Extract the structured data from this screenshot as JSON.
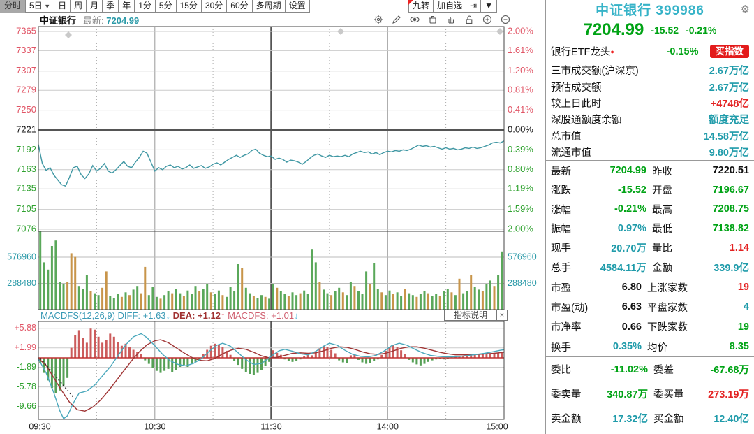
{
  "toolbar": {
    "tabs": [
      {
        "label": "分时",
        "selected": true
      },
      {
        "label": "5日",
        "dropdown": true
      },
      {
        "label": "日"
      },
      {
        "label": "周"
      },
      {
        "label": "月"
      },
      {
        "label": "季"
      },
      {
        "label": "年"
      },
      {
        "label": "1分"
      },
      {
        "label": "5分"
      },
      {
        "label": "15分"
      },
      {
        "label": "30分"
      },
      {
        "label": "60分"
      },
      {
        "label": "多周期"
      },
      {
        "label": "设置"
      }
    ],
    "right": [
      {
        "label": "九转",
        "badge": true
      },
      {
        "label": "加自选"
      },
      {
        "label": "⇥",
        "icon": "next-page-icon"
      },
      {
        "label": "▼",
        "icon": "dropdown-icon"
      }
    ]
  },
  "chart_header": {
    "name": "中证银行",
    "latest_label": "最新:",
    "latest_value": "7204.99",
    "tools": [
      "gear-icon",
      "pencil-icon",
      "eye-icon",
      "trash-icon",
      "hand-icon",
      "unlock-icon",
      "zoom-in-icon",
      "zoom-out-icon"
    ]
  },
  "macd_header": {
    "name": "MACDFS(12,26,9)",
    "diff_label": " DIFF: ",
    "diff_value": "+1.63",
    "diff_arrow": "↓",
    "dea_label": " DEA: ",
    "dea_value": "+1.12",
    "dea_arrow": "↑",
    "macd_label": " MACDFS: ",
    "macd_value": "+1.01",
    "macd_arrow": "↓"
  },
  "indicator_panel": {
    "button": "指标说明",
    "close": "×"
  },
  "chart_data": {
    "type": "line",
    "title": "中证银行 分时图 (intraday)",
    "prev_close": 7220.51,
    "latest": 7204.99,
    "x_ticks": [
      "09:30",
      "10:30",
      "11:30",
      "14:00",
      "15:00"
    ],
    "price_ticks": [
      7365,
      7337,
      7307,
      7279,
      7250,
      7221,
      7192,
      7163,
      7135,
      7105,
      7076
    ],
    "pct_ticks": [
      "2.00%",
      "1.61%",
      "1.20%",
      "0.81%",
      "0.41%",
      "0.00%",
      "0.39%",
      "0.80%",
      "1.19%",
      "1.59%",
      "2.00%"
    ],
    "vol_ticks": [
      576960,
      288480
    ],
    "macd_ticks": [
      "+5.88",
      "+1.99",
      "-1.89",
      "-5.78",
      "-9.66"
    ],
    "ylim": [
      7076,
      7365
    ],
    "grid": true,
    "price": [
      7200,
      7172,
      7162,
      7166,
      7155,
      7148,
      7141,
      7139,
      7152,
      7166,
      7168,
      7156,
      7150,
      7157,
      7169,
      7161,
      7165,
      7172,
      7161,
      7158,
      7163,
      7169,
      7175,
      7168,
      7166,
      7174,
      7181,
      7190,
      7187,
      7174,
      7161,
      7166,
      7163,
      7168,
      7170,
      7166,
      7168,
      7164,
      7166,
      7170,
      7165,
      7167,
      7169,
      7165,
      7167,
      7171,
      7173,
      7170,
      7174,
      7178,
      7181,
      7184,
      7181,
      7184,
      7186,
      7191,
      7193,
      7187,
      7184,
      7182,
      7183,
      7178,
      7180,
      7178,
      7174,
      7177,
      7176,
      7174,
      7171,
      7175,
      7180,
      7184,
      7186,
      7183,
      7181,
      7184,
      7182,
      7183,
      7182,
      7184,
      7182,
      7186,
      7188,
      7190,
      7188,
      7189,
      7186,
      7188,
      7185,
      7188,
      7190,
      7189,
      7191,
      7190,
      7192,
      7191,
      7193,
      7196,
      7199,
      7197,
      7198,
      7196,
      7197,
      7195,
      7193,
      7195,
      7193,
      7194,
      7192,
      7193,
      7195,
      7194,
      7196,
      7194,
      7195,
      7197,
      7199,
      7202,
      7203,
      7202,
      7205
    ],
    "volume_scale": 1000,
    "volume": [
      860,
      520,
      440,
      700,
      760,
      300,
      280,
      -300,
      -620,
      -580,
      260,
      230,
      380,
      -200,
      180,
      160,
      -240,
      -420,
      150,
      130,
      170,
      -140,
      190,
      -160,
      220,
      260,
      -180,
      -470,
      160,
      250,
      140,
      -120,
      160,
      200,
      -180,
      230,
      180,
      -150,
      210,
      170,
      260,
      -200,
      230,
      280,
      -190,
      170,
      210,
      -160,
      140,
      250,
      200,
      500,
      -460,
      240,
      180,
      -150,
      130,
      160,
      -140,
      120,
      280,
      -240,
      200,
      170,
      -150,
      190,
      160,
      -180,
      210,
      170,
      660,
      520,
      -300,
      220,
      180,
      -160,
      200,
      240,
      -190,
      160,
      300,
      -260,
      200,
      170,
      420,
      -280,
      510,
      230,
      -190,
      160,
      210,
      -170,
      190,
      150,
      -230,
      180,
      160,
      -140,
      170,
      200,
      -180,
      150,
      170,
      -150,
      200,
      230,
      -190,
      160,
      -340,
      180,
      200,
      -380,
      250,
      220,
      -200,
      280,
      320,
      -260,
      380,
      640
    ],
    "macd": {
      "hist": [
        -1,
        -3,
        -4.5,
        -6,
        -7,
        -6.5,
        -5.5,
        -4,
        2,
        4.5,
        5.5,
        4,
        3,
        5.8,
        5.6,
        4.2,
        3,
        3.5,
        4.8,
        4.2,
        3.2,
        2.4,
        2.8,
        2.2,
        1.6,
        1.2,
        0.8,
        -0.5,
        -1.2,
        -2,
        -2.6,
        -3,
        -2.6,
        -2.2,
        -2.8,
        -2.4,
        -1.8,
        -1.4,
        -1.8,
        -1.2,
        -0.8,
        -0.4,
        0.8,
        1.6,
        2.4,
        2.8,
        2.6,
        2.2,
        1.4,
        0.6,
        -0.6,
        -1.4,
        -2.2,
        -2.8,
        -3.2,
        -3.4,
        -3,
        -2.4,
        -1.6,
        -0.8,
        1.5,
        1.0,
        0.6,
        -0.3,
        -0.6,
        -0.8,
        -0.6,
        -0.3,
        0.4,
        0.8,
        0.5,
        1.2,
        1.9,
        2.4,
        2.2,
        1.6,
        0.9,
        -0.5,
        -0.9,
        -1.0,
        0.5,
        0.8,
        -0.4,
        -0.9,
        -1.2,
        -1.0,
        -0.6,
        -0.3,
        0.6,
        1.4,
        2.1,
        2.5,
        2.2,
        1.5,
        0.8,
        -0.4,
        -0.9,
        -1.3,
        -1.5,
        -1.2,
        -0.8,
        -0.5,
        -0.3,
        -0.2,
        -0.3,
        -0.2,
        0.2,
        0.3,
        0.2,
        0.3,
        0.4,
        0.5,
        0.6,
        0.7,
        0.8,
        0.9,
        0.9,
        1.0,
        1.0,
        1.0
      ],
      "diff": [
        [
          0,
          -0.2
        ],
        [
          4,
          -3
        ],
        [
          8,
          -7
        ],
        [
          11,
          -10.5
        ],
        [
          13,
          -12.4
        ],
        [
          15,
          -11.5
        ],
        [
          18,
          -9
        ],
        [
          21,
          -7
        ],
        [
          25,
          -6.6
        ],
        [
          29,
          -5.4
        ],
        [
          33,
          -3.6
        ],
        [
          37,
          -1.8
        ],
        [
          41,
          0.4
        ],
        [
          45,
          2.6
        ],
        [
          49,
          4.2
        ],
        [
          53,
          4.8
        ],
        [
          56,
          4.0
        ],
        [
          60,
          2.4
        ],
        [
          64,
          0.7
        ],
        [
          68,
          -0.6
        ],
        [
          72,
          -1.3
        ],
        [
          76,
          -1.6
        ],
        [
          80,
          -1.1
        ],
        [
          84,
          -0.2
        ],
        [
          88,
          1.3
        ],
        [
          92,
          2.5
        ],
        [
          95,
          2.9
        ],
        [
          99,
          2.3
        ],
        [
          103,
          1.0
        ],
        [
          107,
          -0.4
        ],
        [
          111,
          -1.3
        ],
        [
          115,
          -1.1
        ],
        [
          118,
          -0.3
        ],
        [
          121,
          0.6
        ],
        [
          124,
          1.4
        ],
        [
          127,
          1.7
        ],
        [
          131,
          1.3
        ],
        [
          135,
          0.8
        ],
        [
          139,
          0.6
        ],
        [
          143,
          1.3
        ],
        [
          147,
          2.3
        ],
        [
          150,
          2.9
        ],
        [
          154,
          2.5
        ],
        [
          158,
          1.5
        ],
        [
          162,
          0.7
        ],
        [
          166,
          0.3
        ],
        [
          170,
          0.2
        ],
        [
          174,
          0.5
        ],
        [
          178,
          1.3
        ],
        [
          182,
          2.4
        ],
        [
          186,
          2.9
        ],
        [
          190,
          2.5
        ],
        [
          194,
          1.7
        ],
        [
          198,
          1.0
        ],
        [
          202,
          0.5
        ],
        [
          206,
          0.3
        ],
        [
          210,
          0.2
        ],
        [
          214,
          0.2
        ],
        [
          218,
          0.3
        ],
        [
          222,
          0.5
        ],
        [
          226,
          0.7
        ],
        [
          230,
          0.9
        ],
        [
          234,
          1.2
        ],
        [
          238,
          1.5
        ],
        [
          240,
          1.63
        ]
      ],
      "dea": [
        [
          0,
          -0.1
        ],
        [
          4,
          -1.5
        ],
        [
          8,
          -4
        ],
        [
          12,
          -6.5
        ],
        [
          16,
          -8.8
        ],
        [
          20,
          -10.3
        ],
        [
          24,
          -10.6
        ],
        [
          28,
          -9.8
        ],
        [
          32,
          -8.4
        ],
        [
          36,
          -6.6
        ],
        [
          40,
          -4.6
        ],
        [
          44,
          -2.6
        ],
        [
          48,
          -0.6
        ],
        [
          52,
          1.2
        ],
        [
          56,
          2.6
        ],
        [
          60,
          3.4
        ],
        [
          63,
          3.6
        ],
        [
          67,
          3.0
        ],
        [
          71,
          2.0
        ],
        [
          75,
          1.0
        ],
        [
          79,
          0.1
        ],
        [
          83,
          -0.5
        ],
        [
          87,
          -0.6
        ],
        [
          91,
          -0.1
        ],
        [
          95,
          0.8
        ],
        [
          99,
          1.5
        ],
        [
          103,
          1.9
        ],
        [
          107,
          1.7
        ],
        [
          111,
          1.1
        ],
        [
          115,
          0.4
        ],
        [
          119,
          0
        ],
        [
          123,
          0.1
        ],
        [
          127,
          0.5
        ],
        [
          131,
          0.9
        ],
        [
          135,
          1.0
        ],
        [
          139,
          0.9
        ],
        [
          143,
          1.0
        ],
        [
          147,
          1.4
        ],
        [
          151,
          1.9
        ],
        [
          155,
          2.2
        ],
        [
          159,
          2.1
        ],
        [
          163,
          1.7
        ],
        [
          167,
          1.2
        ],
        [
          171,
          0.8
        ],
        [
          175,
          0.7
        ],
        [
          179,
          0.9
        ],
        [
          183,
          1.4
        ],
        [
          187,
          1.9
        ],
        [
          191,
          2.2
        ],
        [
          195,
          2.2
        ],
        [
          199,
          1.9
        ],
        [
          203,
          1.5
        ],
        [
          207,
          1.1
        ],
        [
          211,
          0.8
        ],
        [
          215,
          0.6
        ],
        [
          219,
          0.6
        ],
        [
          223,
          0.6
        ],
        [
          227,
          0.7
        ],
        [
          231,
          0.8
        ],
        [
          235,
          0.9
        ],
        [
          240,
          1.12
        ]
      ]
    },
    "trendline": {
      "from": [
        1,
        -0.1
      ],
      "to": [
        18,
        -7.8
      ]
    },
    "diamond_markers_x": [
      98,
      488,
      716
    ],
    "colors": {
      "price_line": "#3f97a3",
      "vol_up": "#5aa85a",
      "vol_down": "#c8954a",
      "macd_hist_pos": "#cc5c5c",
      "macd_hist_neg": "#55a055",
      "diff_line": "#4aa8bc",
      "dea_line": "#a03535",
      "tick_red": "#e15566",
      "tick_green": "#2ea12e",
      "tick_cyan": "#2b9aa8"
    }
  },
  "sidebar": {
    "title": "中证银行 399986",
    "gear": "⚙",
    "price": "7204.99",
    "change": "-15.52",
    "pct": "-0.21%",
    "etf": {
      "name": "银行ETF龙头",
      "dot": "●",
      "pct": "-0.15%",
      "button": "买指数"
    },
    "info_rows": [
      {
        "label": "三市成交额(沪深京)",
        "value": "2.67万亿",
        "vc": "c"
      },
      {
        "label": "预估成交额",
        "value": "2.67万亿",
        "vc": "c"
      },
      {
        "label": "较上日此时",
        "value": "+4748亿",
        "vc": "r"
      },
      {
        "label": "深股通额度余额",
        "value": "额度充足",
        "vc": "c"
      },
      {
        "label": "总市值",
        "value": "14.58万亿",
        "vc": "c"
      },
      {
        "label": "流通市值",
        "value": "9.80万亿",
        "vc": "c"
      }
    ],
    "quote_rows": [
      {
        "l1": "最新",
        "v1": "7204.99",
        "c1": "g",
        "l2": "昨收",
        "v2": "7220.51",
        "c2": "k"
      },
      {
        "l1": "涨跌",
        "v1": "-15.52",
        "c1": "g",
        "l2": "开盘",
        "v2": "7196.67",
        "c2": "g"
      },
      {
        "l1": "涨幅",
        "v1": "-0.21%",
        "c1": "g",
        "l2": "最高",
        "v2": "7208.75",
        "c2": "g"
      },
      {
        "l1": "振幅",
        "v1": "0.97%",
        "c1": "c",
        "l2": "最低",
        "v2": "7138.82",
        "c2": "g"
      },
      {
        "l1": "现手",
        "v1": "20.70万",
        "c1": "c",
        "l2": "量比",
        "v2": "1.14",
        "c2": "r"
      },
      {
        "l1": "总手",
        "v1": "4584.11万",
        "c1": "c",
        "l2": "金额",
        "v2": "339.9亿",
        "c2": "c"
      }
    ],
    "count_rows": [
      {
        "l1": "市盈",
        "v1": "6.80",
        "c1": "k",
        "l2": "上涨家数",
        "v2": "19",
        "c2": "r"
      },
      {
        "l1": "市盈(动)",
        "v1": "6.63",
        "c1": "k",
        "l2": "平盘家数",
        "v2": "4",
        "c2": "c"
      },
      {
        "l1": "市净率",
        "v1": "0.66",
        "c1": "k",
        "l2": "下跌家数",
        "v2": "19",
        "c2": "g"
      },
      {
        "l1": "换手",
        "v1": "0.35%",
        "c1": "c",
        "l2": "均价",
        "v2": "8.35",
        "c2": "g"
      }
    ],
    "order_rows": [
      {
        "l1": "委比",
        "v1": "-11.02%",
        "c1": "g",
        "l2": "委差",
        "v2": "-67.68万",
        "c2": "g"
      },
      {
        "l1": "委卖量",
        "v1": "340.87万",
        "c1": "g",
        "l2": "委买量",
        "v2": "273.19万",
        "c2": "r"
      },
      {
        "l1": "卖金额",
        "v1": "17.32亿",
        "c1": "c",
        "l2": "买金额",
        "v2": "12.40亿",
        "c2": "c"
      }
    ]
  }
}
